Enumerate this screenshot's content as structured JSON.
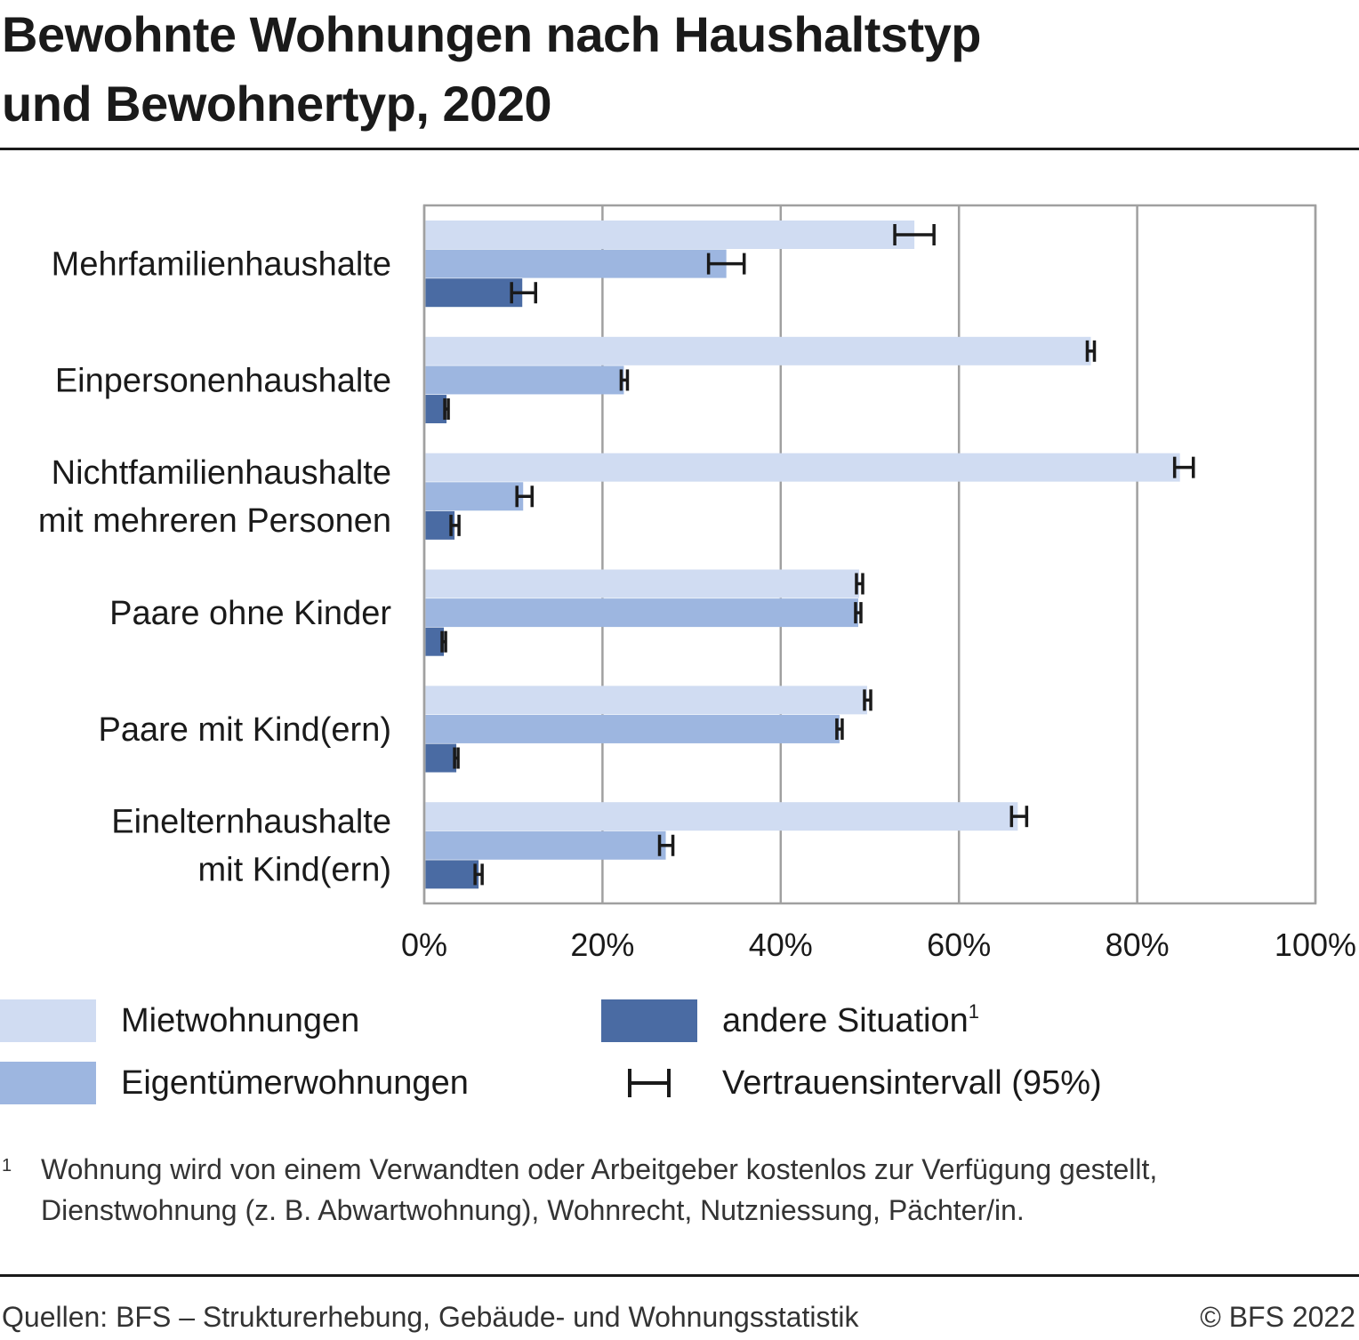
{
  "title": {
    "line1": "Bewohnte Wohnungen nach Haushaltstyp",
    "line2": "und Bewohnertyp, 2020"
  },
  "colors": {
    "miet": "#d0dcf2",
    "eigen": "#9db6e0",
    "andere": "#4a6ba3",
    "grid": "#a0a0a0",
    "ci": "#1a1a1a"
  },
  "chart_data": {
    "type": "bar",
    "orientation": "horizontal",
    "xlim": [
      0,
      100
    ],
    "ticks": [
      0,
      20,
      40,
      60,
      80,
      100
    ],
    "tick_labels": [
      "0%",
      "20%",
      "40%",
      "60%",
      "80%",
      "100%"
    ],
    "grid": true,
    "categories": [
      [
        "Mehrfamilienhaushalte"
      ],
      [
        "Einpersonenhaushalte"
      ],
      [
        "Nichtfamilienhaushalte",
        "mit mehreren Personen"
      ],
      [
        "Paare ohne Kinder"
      ],
      [
        "Paare mit Kind(ern)"
      ],
      [
        "Einelternhaushalte",
        "mit Kind(ern)"
      ]
    ],
    "series": [
      {
        "name": "Mietwohnungen",
        "values": [
          55,
          74.8,
          84.8,
          48.8,
          49.7,
          66.6
        ],
        "ci_low": [
          52.8,
          74.4,
          84.2,
          48.5,
          49.4,
          65.9
        ],
        "ci_high": [
          57.2,
          75.2,
          86.3,
          49.2,
          50.1,
          67.6
        ]
      },
      {
        "name": "Eigentümerwohnungen",
        "values": [
          33.9,
          22.4,
          11.1,
          48.7,
          46.6,
          27.1
        ],
        "ci_low": [
          31.9,
          22.1,
          10.4,
          48.4,
          46.3,
          26.4
        ],
        "ci_high": [
          35.9,
          22.8,
          12.1,
          49.0,
          46.9,
          27.9
        ]
      },
      {
        "name": "andere Situation",
        "values": [
          11.0,
          2.5,
          3.4,
          2.2,
          3.6,
          6.1
        ],
        "ci_low": [
          9.8,
          2.3,
          3.0,
          2.0,
          3.4,
          5.7
        ],
        "ci_high": [
          12.5,
          2.7,
          3.9,
          2.4,
          3.8,
          6.5
        ]
      }
    ]
  },
  "legend": {
    "miet": "Mietwohnungen",
    "eigen": "Eigentümerwohnungen",
    "andere": "andere Situation",
    "andere_sup": "1",
    "ci": "Vertrauensintervall (95%)"
  },
  "footnote": {
    "mark": "1",
    "line1": "Wohnung wird von einem Verwandten oder Arbeitgeber kostenlos zur Verfügung gestellt,",
    "line2": "Dienstwohnung (z. B. Abwartwohnung), Wohnrecht, Nutzniessung, Pächter/in."
  },
  "source": "Quellen: BFS – Strukturerhebung, Gebäude- und Wohnungsstatistik",
  "copyright": "© BFS 2022"
}
